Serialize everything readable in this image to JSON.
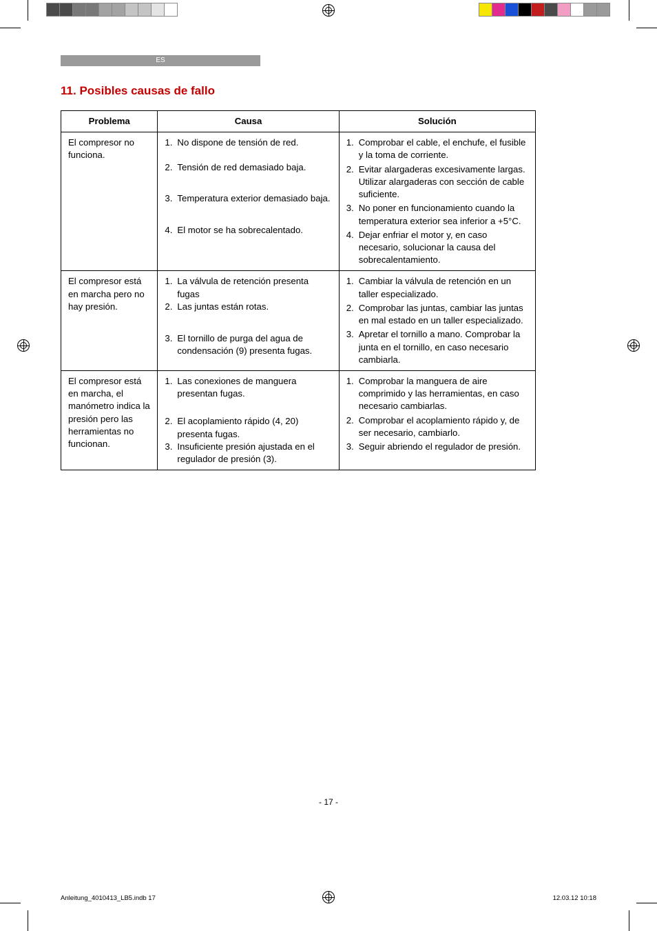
{
  "lang_label": "ES",
  "section_number": "11.",
  "section_title": "Posibles causas de fallo",
  "columns": {
    "c1": "Problema",
    "c2": "Causa",
    "c3": "Solución"
  },
  "rows": [
    {
      "problem": "El compresor no funciona.",
      "causes": [
        {
          "n": "1.",
          "t": "No dispone de tensión de red."
        },
        {
          "n": "2.",
          "t": "Tensión de red demasiado baja."
        },
        {
          "n": "3.",
          "t": "Temperatura exterior demasiado baja."
        },
        {
          "n": "4.",
          "t": "El motor se ha sobrecalentado."
        }
      ],
      "solutions": [
        {
          "n": "1.",
          "t": "Comprobar el cable, el enchufe, el fusible y la toma de corriente."
        },
        {
          "n": "2.",
          "t": "Evitar alargaderas excesivamente largas. Utilizar alargaderas con sección de cable suficiente."
        },
        {
          "n": "3.",
          "t": "No poner en funcionamiento cuando la temperatura exterior sea inferior a +5°C."
        },
        {
          "n": "4.",
          "t": "Dejar enfriar el motor y, en caso necesario, solucionar la causa del sobrecalentamiento."
        }
      ]
    },
    {
      "problem": "El compresor está en marcha pero no hay presión.",
      "causes": [
        {
          "n": "1.",
          "t": "La válvula de retención presenta fugas"
        },
        {
          "n": "2.",
          "t": "Las juntas están rotas."
        },
        {
          "n": "3.",
          "t": "El tornillo de purga del agua de condensación (9) presenta fugas."
        }
      ],
      "solutions": [
        {
          "n": "1.",
          "t": "Cambiar la válvula de retención en un taller especializado."
        },
        {
          "n": "2.",
          "t": "Comprobar las juntas, cambiar las juntas en mal estado en un taller especializado."
        },
        {
          "n": "3.",
          "t": "Apretar el tornillo a mano. Comprobar la junta en el tornillo, en caso necesario cambiarla."
        }
      ]
    },
    {
      "problem": "El compresor está en marcha, el manómetro indica la presión pero las herramientas no funcionan.",
      "causes": [
        {
          "n": "1.",
          "t": "Las conexiones de manguera presentan fugas."
        },
        {
          "n": "2.",
          "t": "El acoplamiento rápido (4, 20) presenta fugas."
        },
        {
          "n": "3.",
          "t": "Insuficiente presión ajustada en el regulador de presión (3)."
        }
      ],
      "solutions": [
        {
          "n": "1.",
          "t": "Comprobar la manguera de aire comprimido y las herramientas, en caso necesario cambiarlas."
        },
        {
          "n": "2.",
          "t": "Comprobar el acoplamiento rápido y, de ser necesario, cambiarlo."
        },
        {
          "n": "3.",
          "t": "Seguir abriendo el regulador de presión."
        }
      ]
    }
  ],
  "page_num": "- 17 -",
  "footer_left": "Anleitung_4010413_LB5.indb   17",
  "footer_right": "12.03.12   10:18",
  "colorbar_left": [
    "#4a4a4a",
    "#4a4a4a",
    "#787878",
    "#787878",
    "#a3a3a3",
    "#a3a3a3",
    "#c4c4c4",
    "#c4c4c4",
    "#e4e4e4",
    "#ffffff"
  ],
  "colorbar_right": [
    "#f7e600",
    "#e22b8e",
    "#1a4fd8",
    "#000000",
    "#c11d1d",
    "#4a4a4a",
    "#f29ec4",
    "#ffffff",
    "#9a9a9a",
    "#9a9a9a"
  ],
  "accent_red": "#c30000"
}
